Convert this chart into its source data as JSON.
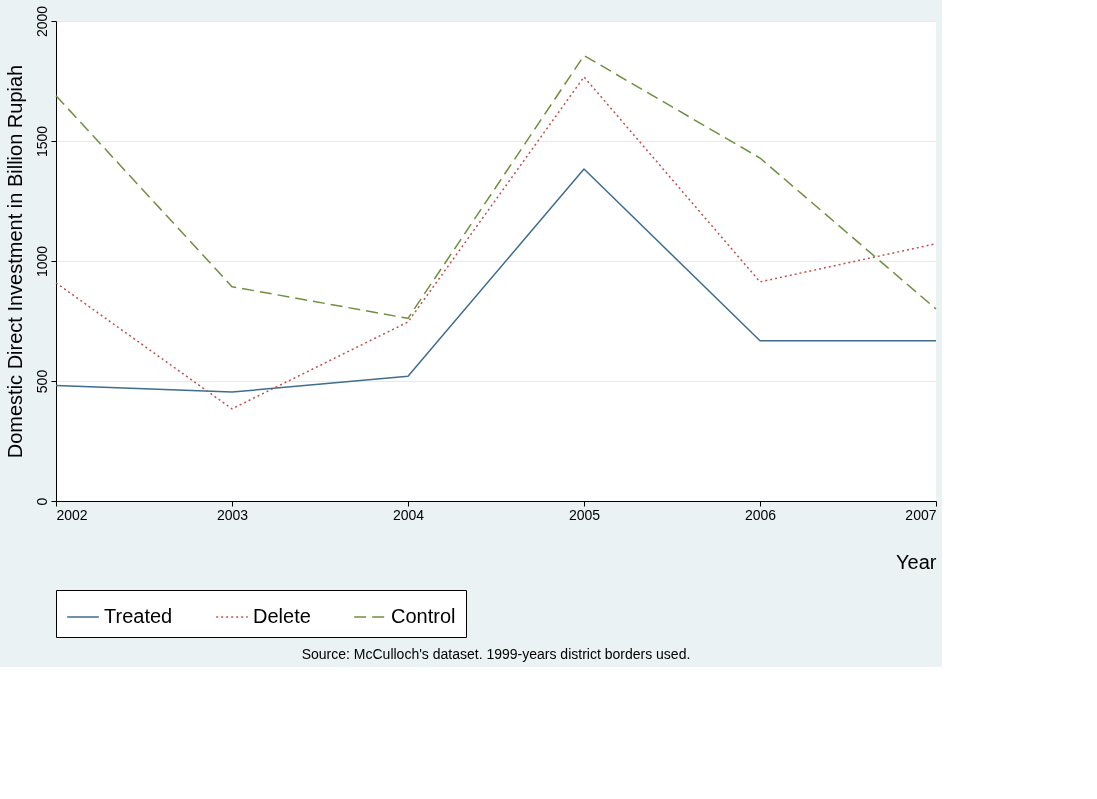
{
  "chart_data": {
    "type": "line",
    "xlabel": "Year",
    "ylabel": "Domestic Direct Investment in Billion Rupiah",
    "x": [
      2002,
      2003,
      2004,
      2005,
      2006,
      2007
    ],
    "series": [
      {
        "name": "Treated",
        "color": "#3e6d8e",
        "line_style": "solid",
        "values": [
          481,
          454,
          520,
          1383,
          668,
          668
        ]
      },
      {
        "name": "Delete",
        "color": "#c0504d",
        "line_style": "dotted",
        "values": [
          909,
          384,
          746,
          1767,
          913,
          1072
        ]
      },
      {
        "name": "Control",
        "color": "#6f8f3f",
        "line_style": "dashed",
        "values": [
          1689,
          893,
          761,
          1856,
          1429,
          800
        ]
      }
    ],
    "xlim": [
      2002,
      2007
    ],
    "xticks": [
      2002,
      2003,
      2004,
      2005,
      2006,
      2007
    ],
    "ylim": [
      0,
      2000
    ],
    "yticks": [
      0,
      500,
      1000,
      1500,
      2000
    ],
    "grid": "y",
    "legend": "bottom",
    "marker": "none",
    "annotations": [
      "Source: McCulloch's dataset. 1999-years district borders used."
    ]
  }
}
